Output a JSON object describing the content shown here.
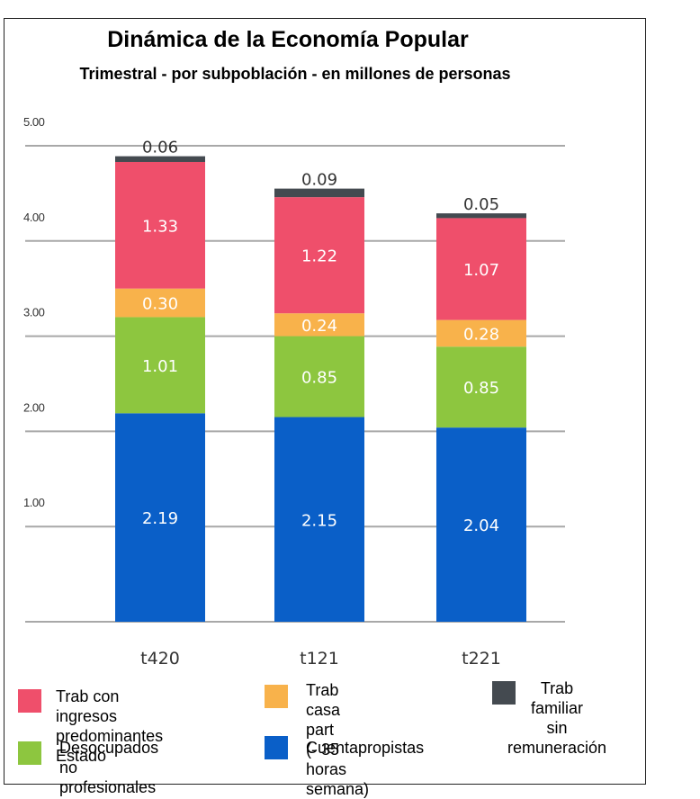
{
  "chart_data": {
    "type": "bar",
    "stacked": true,
    "title": "Dinámica de la Economía Popular",
    "subtitle": "Trimestral - por subpoblación - en millones de personas",
    "categories": [
      "t420",
      "t121",
      "t221"
    ],
    "y_ticks": [
      "5.00",
      "4.00",
      "3.00",
      "2.00",
      "1.00"
    ],
    "ylim": [
      0,
      5
    ],
    "grid": true,
    "legend_position": "bottom",
    "series": [
      {
        "name": "Cuentapropistas",
        "color": "#0a5fc8",
        "values": [
          2.19,
          2.15,
          2.04
        ],
        "labels": [
          "2.19",
          "2.15",
          "2.04"
        ]
      },
      {
        "name": "Desocupados no profesionales",
        "color": "#8dc63f",
        "values": [
          1.01,
          0.85,
          0.85
        ],
        "labels": [
          "1.01",
          "0.85",
          "0.85"
        ]
      },
      {
        "name": "Trab casa part (- 35 horas semana)",
        "color": "#f8b24b",
        "values": [
          0.3,
          0.24,
          0.28
        ],
        "labels": [
          "0.30",
          "0.24",
          "0.28"
        ]
      },
      {
        "name": "Trab con ingresos predominantes Estado",
        "color": "#ef4f6b",
        "values": [
          1.33,
          1.22,
          1.07
        ],
        "labels": [
          "1.33",
          "1.22",
          "1.07"
        ]
      },
      {
        "name": "Trab familiar sin remuneración",
        "color": "#444a50",
        "values": [
          0.06,
          0.09,
          0.05
        ],
        "labels": [
          "0.06",
          "0.09",
          "0.05"
        ]
      }
    ]
  },
  "legend": [
    {
      "label": "Trab con ingresos\npredominantes Estado",
      "color": "#ef4f6b"
    },
    {
      "label": "Trab casa part\n(- 35 horas semana)",
      "color": "#f8b24b"
    },
    {
      "label": "Trab\nfamiliar\nsin\nremuneración",
      "color": "#444a50"
    },
    {
      "label": "Desocupados no\nprofesionales",
      "color": "#8dc63f"
    },
    {
      "label": "Cuentapropistas",
      "color": "#0a5fc8"
    }
  ]
}
